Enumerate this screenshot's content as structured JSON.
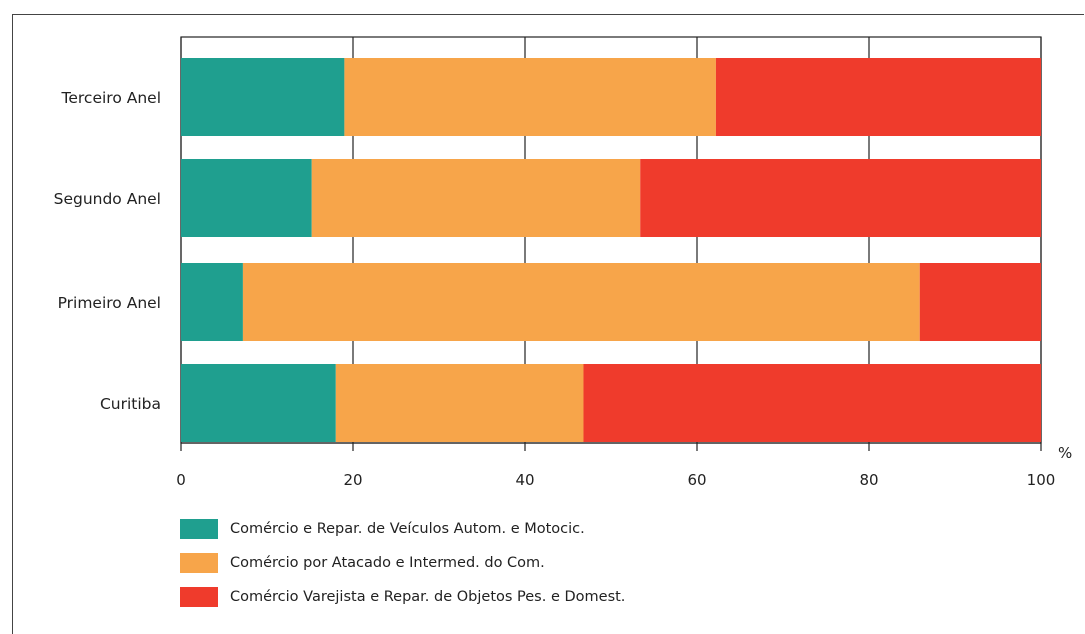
{
  "chart_data": {
    "type": "bar",
    "orientation": "horizontal",
    "stacked": true,
    "categories": [
      "Terceiro Anel",
      "Segundo Anel",
      "Primeiro Anel",
      "Curitiba"
    ],
    "series": [
      {
        "name": "Comércio e Repar. de Veículos Autom. e Motocic.",
        "color": "#1f9f8f",
        "values": [
          19,
          15.2,
          7.2,
          18
        ]
      },
      {
        "name": "Comércio por Atacado e Intermed. do Com.",
        "color": "#f7a54a",
        "values": [
          43.2,
          38.2,
          78.7,
          28.8
        ]
      },
      {
        "name": "Comércio Varejista e Repar. de Objetos Pes. e Domest.",
        "color": "#ef3b2c",
        "values": [
          37.8,
          46.6,
          14.1,
          53.2
        ]
      }
    ],
    "xlim": [
      0,
      100
    ],
    "xticks": [
      "0",
      "20",
      "40",
      "60",
      "80",
      "100"
    ],
    "xlabel": "%",
    "grid": true,
    "legend_position": "bottom-left"
  }
}
